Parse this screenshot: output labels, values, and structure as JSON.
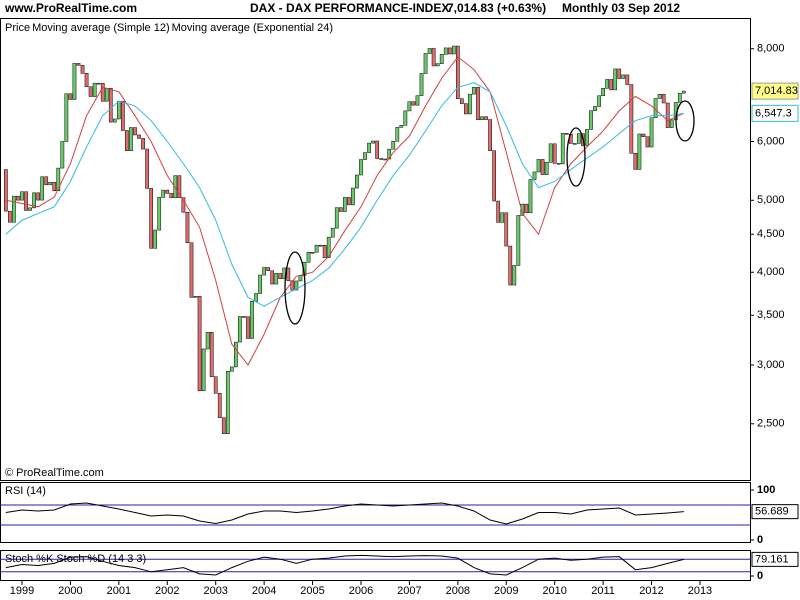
{
  "header": {
    "site": "www.ProRealTime.com",
    "instrument": "DAX - DAX PERFORMANCE-INDEX",
    "quote": "7,014.83 (+0.63%)",
    "period": "Monthly  03 Sep 2012"
  },
  "copyright": "© ProRealTime.com",
  "chart_data": [
    {
      "type": "candlestick",
      "log_scale": true,
      "xlim": [
        -1.45,
        184.4
      ],
      "xticks": [
        {
          "value": 4,
          "label": "1999"
        },
        {
          "value": 16,
          "label": "2000"
        },
        {
          "value": 28,
          "label": "2001"
        },
        {
          "value": 40,
          "label": "2002"
        },
        {
          "value": 52,
          "label": "2003"
        },
        {
          "value": 64,
          "label": "2004"
        },
        {
          "value": 76,
          "label": "2005"
        },
        {
          "value": 88,
          "label": "2006"
        },
        {
          "value": 100,
          "label": "2007"
        },
        {
          "value": 112,
          "label": "2008"
        },
        {
          "value": 124,
          "label": "2009"
        },
        {
          "value": 136,
          "label": "2010"
        },
        {
          "value": 148,
          "label": "2011"
        },
        {
          "value": 160,
          "label": "2012"
        },
        {
          "value": 172,
          "label": "2013"
        }
      ],
      "ylim": [
        2100,
        8800
      ],
      "yticks": [
        {
          "value": 2500,
          "label": "2,500"
        },
        {
          "value": 3000,
          "label": "3,000"
        },
        {
          "value": 3500,
          "label": "3,500"
        },
        {
          "value": 4000,
          "label": "4,000"
        },
        {
          "value": 4500,
          "label": "4,500"
        },
        {
          "value": 5000,
          "label": "5,000"
        },
        {
          "value": 6000,
          "label": "6,000"
        },
        {
          "value": 8000,
          "label": "8,000"
        }
      ],
      "x": [
        0,
        1,
        2,
        3,
        4,
        5,
        6,
        7,
        8,
        9,
        10,
        11,
        12,
        13,
        14,
        15,
        16,
        17,
        18,
        19,
        20,
        21,
        22,
        23,
        24,
        25,
        26,
        27,
        28,
        29,
        30,
        31,
        32,
        33,
        34,
        35,
        36,
        37,
        38,
        39,
        40,
        41,
        42,
        43,
        44,
        45,
        46,
        47,
        48,
        49,
        50,
        51,
        52,
        53,
        54,
        55,
        56,
        57,
        58,
        59,
        60,
        61,
        62,
        63,
        64,
        65,
        66,
        67,
        68,
        69,
        70,
        71,
        72,
        73,
        74,
        75,
        76,
        77,
        78,
        79,
        80,
        81,
        82,
        83,
        84,
        85,
        86,
        87,
        88,
        89,
        90,
        91,
        92,
        93,
        94,
        95,
        96,
        97,
        98,
        99,
        100,
        101,
        102,
        103,
        104,
        105,
        106,
        107,
        108,
        109,
        110,
        111,
        112,
        113,
        114,
        115,
        116,
        117,
        118,
        119,
        120,
        121,
        122,
        123,
        124,
        125,
        126,
        127,
        128,
        129,
        130,
        131,
        132,
        133,
        134,
        135,
        136,
        137,
        138,
        139,
        140,
        141,
        142,
        143,
        144,
        145,
        146,
        147,
        148,
        149,
        150,
        151,
        152,
        153,
        154,
        155,
        156,
        157,
        158,
        159,
        160,
        161,
        162,
        163,
        164,
        165,
        166,
        167,
        168
      ],
      "series": [
        {
          "name": "Price",
          "up_color": "#66cc66",
          "down_color": "#e06b6b",
          "close_label": "7,014.83",
          "label_color": "#ffff88",
          "open": [
            5500,
            4834,
            4671,
            5065,
            5002,
            5134,
            4845,
            4884,
            5117,
            5003,
            5378,
            5245,
            5286,
            5150,
            5525,
            6000,
            6958,
            6835,
            7644,
            7599,
            7414,
            7110,
            6898,
            7190,
            7186,
            6798,
            7078,
            6372,
            6434,
            6795,
            6208,
            5830,
            6265,
            6123,
            6058,
            5861,
            5188,
            4308,
            4559,
            5045,
            5160,
            5108,
            5039,
            5397,
            5041,
            4818,
            4383,
            3700,
            3712,
            2769,
            3153,
            3320,
            2893,
            2748,
            2547,
            2424,
            2942,
            2982,
            3221,
            3487,
            3484,
            3257,
            3656,
            3745,
            3965,
            4059,
            4018,
            3856,
            3985,
            3921,
            4053,
            3895,
            3785,
            3893,
            3960,
            4126,
            4256,
            4255,
            4350,
            4349,
            4185,
            4460,
            4586,
            4887,
            4829,
            5044,
            4929,
            5193,
            5408,
            5674,
            5797,
            5970,
            6009,
            5692,
            5683,
            5682,
            5859,
            6004,
            6269,
            6309,
            6597,
            6789,
            6716,
            6917,
            7409,
            7883,
            8007,
            7584,
            7638,
            7862,
            8020,
            7871,
            8067,
            6851,
            6748,
            6535,
            6949,
            7097,
            6418,
            6479,
            6422,
            5831,
            4988,
            4669,
            4810,
            4338,
            3844,
            4085,
            4770,
            4941,
            4809,
            5332,
            5459,
            5675,
            5415,
            5625,
            5957,
            5608,
            5598,
            6154,
            6136,
            5964,
            5966,
            6148,
            5925,
            6229,
            6601,
            6688,
            6914,
            7077,
            7273,
            7041,
            7514,
            7294,
            7376,
            7159,
            5785,
            5502,
            6141,
            6089,
            5898,
            6458,
            6856,
            6947,
            6761,
            6264,
            6416,
            6772,
            6970
          ],
          "close": [
            4834,
            4671,
            5065,
            5002,
            5134,
            4845,
            4884,
            5117,
            5003,
            5378,
            5245,
            5286,
            5150,
            5525,
            6000,
            6958,
            6835,
            7644,
            7599,
            7414,
            7110,
            6898,
            7190,
            7186,
            6798,
            7078,
            6372,
            6434,
            6795,
            6208,
            5830,
            6265,
            6123,
            6058,
            5861,
            5188,
            4308,
            4559,
            5045,
            5160,
            5108,
            5039,
            5397,
            5041,
            4818,
            4383,
            3700,
            3712,
            2769,
            3153,
            3320,
            2893,
            2748,
            2547,
            2424,
            2942,
            2982,
            3221,
            3487,
            3484,
            3257,
            3656,
            3745,
            3965,
            4059,
            4018,
            3856,
            3985,
            3921,
            4053,
            3895,
            3785,
            3893,
            3960,
            4126,
            4256,
            4255,
            4350,
            4349,
            4185,
            4460,
            4586,
            4887,
            4829,
            5044,
            4929,
            5193,
            5408,
            5674,
            5797,
            5970,
            6009,
            5692,
            5683,
            5682,
            5859,
            6004,
            6269,
            6309,
            6597,
            6789,
            6716,
            6917,
            7409,
            7883,
            8007,
            7584,
            7638,
            7862,
            8020,
            7871,
            8067,
            6851,
            6748,
            6535,
            6949,
            7097,
            6418,
            6479,
            6422,
            5831,
            4988,
            4669,
            4810,
            4338,
            3844,
            4085,
            4770,
            4941,
            4809,
            5332,
            5459,
            5675,
            5415,
            5625,
            5957,
            5608,
            5598,
            6154,
            6136,
            5964,
            5966,
            6148,
            5925,
            6229,
            6601,
            6688,
            6914,
            7077,
            7273,
            7041,
            7514,
            7294,
            7376,
            7159,
            5785,
            5502,
            6141,
            6089,
            5898,
            6458,
            6856,
            6947,
            6761,
            6264,
            6416,
            6772,
            6970,
            7014.83
          ]
        },
        {
          "name": "Moving average (Simple 12)",
          "color": "#d04040",
          "x": [
            0,
            4,
            8,
            12,
            16,
            20,
            24,
            28,
            32,
            36,
            40,
            44,
            48,
            52,
            56,
            60,
            64,
            68,
            72,
            76,
            80,
            84,
            88,
            92,
            96,
            100,
            104,
            108,
            112,
            116,
            120,
            124,
            128,
            132,
            136,
            140,
            144,
            148,
            152,
            156,
            160,
            164,
            168
          ],
          "values": [
            5000,
            4950,
            4900,
            5050,
            5600,
            6500,
            7100,
            7000,
            6500,
            6000,
            5400,
            5000,
            4600,
            3900,
            3200,
            3000,
            3300,
            3700,
            3950,
            4000,
            4200,
            4550,
            4900,
            5400,
            5800,
            6100,
            6700,
            7300,
            7800,
            7500,
            7000,
            5800,
            4800,
            4500,
            5200,
            5600,
            5900,
            6200,
            6600,
            6900,
            6700,
            6400,
            6550
          ]
        },
        {
          "name": "Moving average (Exponential 24)",
          "color": "#33bbdd",
          "label_color": "#ffffff",
          "last_label": "6,547.3",
          "x": [
            0,
            4,
            8,
            12,
            16,
            20,
            24,
            28,
            32,
            36,
            40,
            44,
            48,
            52,
            56,
            60,
            64,
            68,
            72,
            76,
            80,
            84,
            88,
            92,
            96,
            100,
            104,
            108,
            112,
            116,
            120,
            124,
            128,
            132,
            136,
            140,
            144,
            148,
            152,
            156,
            160,
            164,
            168
          ],
          "values": [
            4500,
            4700,
            4800,
            4900,
            5300,
            5900,
            6500,
            6800,
            6700,
            6400,
            6000,
            5600,
            5200,
            4700,
            4100,
            3700,
            3600,
            3700,
            3800,
            3900,
            4050,
            4300,
            4600,
            5000,
            5400,
            5750,
            6200,
            6700,
            7100,
            7200,
            7000,
            6300,
            5600,
            5200,
            5300,
            5500,
            5700,
            5900,
            6150,
            6400,
            6500,
            6500,
            6547.3
          ]
        }
      ]
    },
    {
      "type": "line",
      "title": "RSI (14)",
      "xlim": [
        -1.45,
        184.4
      ],
      "ylim": [
        0,
        100
      ],
      "yticks": [
        0,
        100
      ],
      "hlines": [
        70,
        30
      ],
      "hline_color": "#2222aa",
      "fill_color": "#c99",
      "series": [
        {
          "name": "RSI",
          "color": "#000000",
          "last_label": "56.689",
          "x": [
            0,
            4,
            8,
            12,
            16,
            20,
            24,
            28,
            32,
            36,
            40,
            44,
            48,
            52,
            56,
            60,
            64,
            68,
            72,
            76,
            80,
            84,
            88,
            92,
            96,
            100,
            104,
            108,
            112,
            116,
            120,
            124,
            128,
            132,
            136,
            140,
            144,
            148,
            152,
            156,
            160,
            164,
            168
          ],
          "values": [
            55,
            60,
            58,
            60,
            72,
            74,
            68,
            62,
            55,
            48,
            50,
            48,
            38,
            33,
            40,
            52,
            58,
            58,
            55,
            58,
            62,
            68,
            72,
            70,
            68,
            70,
            72,
            74,
            68,
            58,
            40,
            32,
            42,
            55,
            55,
            52,
            60,
            62,
            64,
            50,
            52,
            54,
            56.689
          ]
        }
      ]
    },
    {
      "type": "line",
      "xlim": [
        -1.45,
        184.4
      ],
      "ylim": [
        0,
        100
      ],
      "yticks": [
        0
      ],
      "hlines": [
        80,
        20
      ],
      "hline_color": "#2222aa",
      "series": [
        {
          "name": "Stoch %K",
          "color": "#000000",
          "last_label": "79.161",
          "x": [
            0,
            4,
            8,
            12,
            16,
            20,
            24,
            28,
            32,
            36,
            40,
            44,
            48,
            52,
            56,
            60,
            64,
            68,
            72,
            76,
            80,
            84,
            88,
            92,
            96,
            100,
            104,
            108,
            112,
            116,
            120,
            124,
            128,
            132,
            136,
            140,
            144,
            148,
            152,
            156,
            160,
            164,
            168
          ],
          "values": [
            40,
            55,
            50,
            60,
            90,
            92,
            70,
            50,
            40,
            20,
            30,
            40,
            10,
            5,
            40,
            70,
            90,
            80,
            60,
            80,
            85,
            95,
            98,
            95,
            92,
            95,
            97,
            95,
            85,
            40,
            10,
            5,
            40,
            80,
            85,
            75,
            80,
            90,
            92,
            30,
            40,
            60,
            79.161
          ]
        },
        {
          "name": "Stoch %D (14 3 3)",
          "color": "#e08080"
        }
      ]
    }
  ]
}
